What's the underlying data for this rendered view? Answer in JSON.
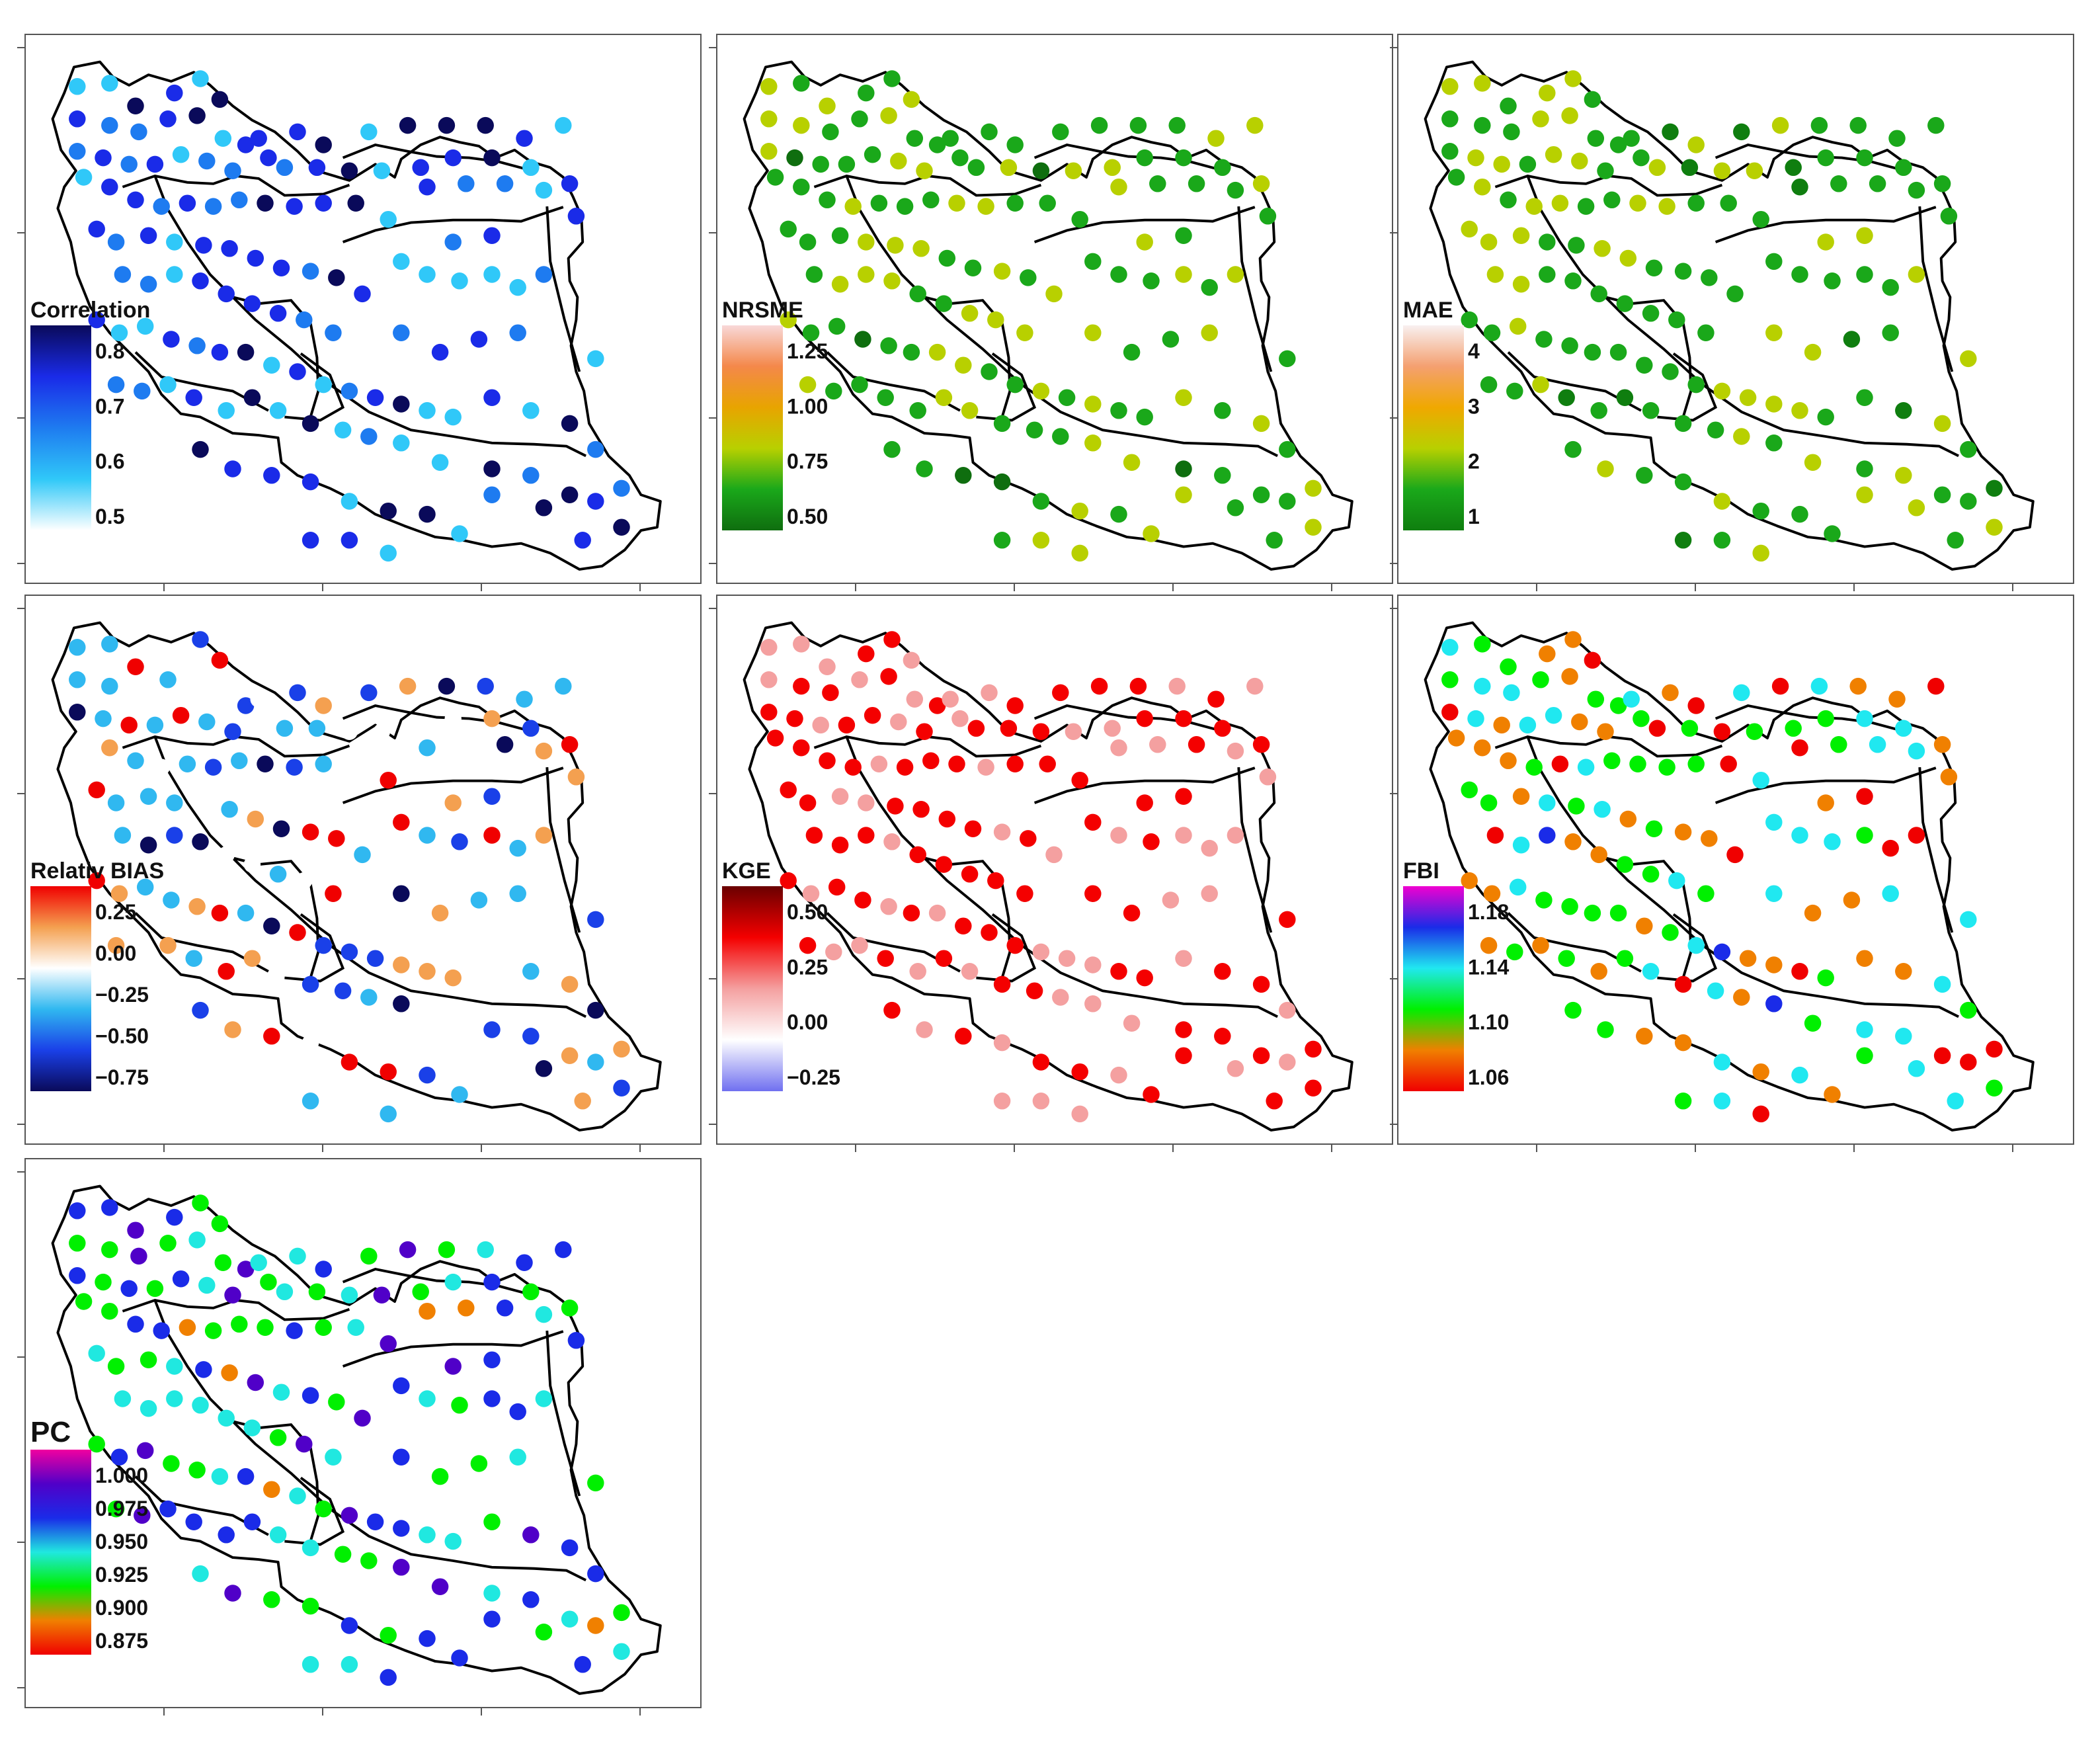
{
  "chart_data": [
    {
      "type": "scatter",
      "title": "Correlation",
      "legend_ticks": [
        "0.8",
        "0.7",
        "0.6",
        "0.5"
      ],
      "colors": [
        "#0a0a5a",
        "#1a2be8",
        "#1e7bf0",
        "#30c8f8",
        "#ffffff"
      ],
      "points": []
    },
    {
      "type": "scatter",
      "title": "NRSME",
      "legend_ticks": [
        "1.25",
        "1.00",
        "0.75",
        "0.50"
      ],
      "colors": [
        "#f8d8d8",
        "#f4884a",
        "#e8a400",
        "#b8d000",
        "#1aa81a",
        "#0f6e0f"
      ],
      "points": []
    },
    {
      "type": "scatter",
      "title": "MAE",
      "legend_ticks": [
        "4",
        "3",
        "2",
        "1"
      ],
      "colors": [
        "#f8f0f0",
        "#f4a070",
        "#f0a800",
        "#b8d000",
        "#1aa81a",
        "#0f7e0f"
      ],
      "points": []
    },
    {
      "type": "scatter",
      "title": "Relativ BIAS",
      "legend_ticks": [
        "0.25",
        "0.00",
        "−0.25",
        "−0.50",
        "−0.75"
      ],
      "colors": [
        "#f00000",
        "#f4a050",
        "#ffffff",
        "#30b8f0",
        "#1a40e8",
        "#0a0a5a"
      ],
      "points": []
    },
    {
      "type": "scatter",
      "title": "KGE",
      "legend_ticks": [
        "0.50",
        "0.25",
        "0.00",
        "−0.25"
      ],
      "colors": [
        "#6a0000",
        "#f40000",
        "#f4a0a0",
        "#ffffff",
        "#7070f0"
      ],
      "points": []
    },
    {
      "type": "scatter",
      "title": "FBI",
      "legend_ticks": [
        "1.18",
        "1.14",
        "1.10",
        "1.06"
      ],
      "colors": [
        "#f000d0",
        "#1a2be8",
        "#20e8f0",
        "#00f000",
        "#f08000",
        "#f00000"
      ],
      "points": []
    },
    {
      "type": "scatter",
      "title": "PC",
      "legend_ticks": [
        "1.000",
        "0.975",
        "0.950",
        "0.925",
        "0.900",
        "0.875"
      ],
      "colors": [
        "#f000a0",
        "#5000c8",
        "#1a2be8",
        "#20e8e0",
        "#00f000",
        "#f08000",
        "#f00000"
      ],
      "points": []
    }
  ]
}
